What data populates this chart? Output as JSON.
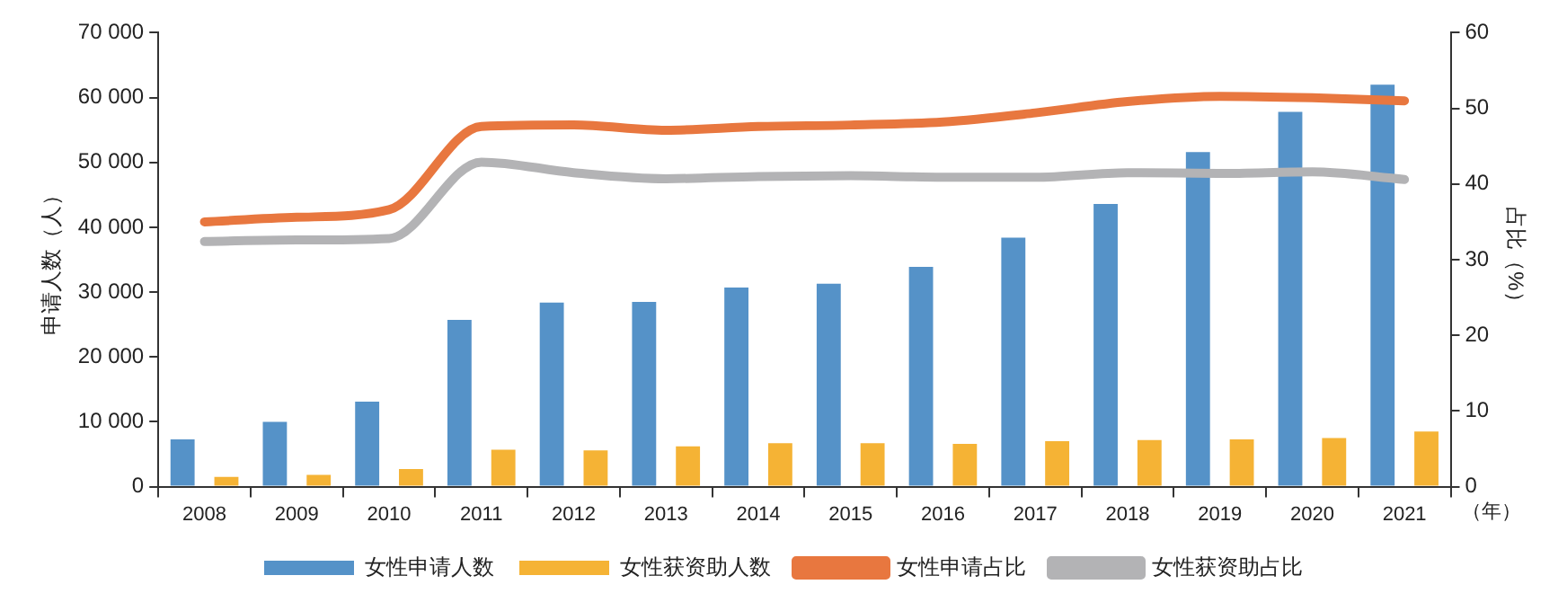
{
  "chart_data": {
    "type": "bar",
    "categories": [
      "2008",
      "2009",
      "2010",
      "2011",
      "2012",
      "2013",
      "2014",
      "2015",
      "2016",
      "2017",
      "2018",
      "2019",
      "2020",
      "2021"
    ],
    "series": [
      {
        "name": "女性申请人数",
        "color": "#5592c8",
        "values": [
          7300,
          10000,
          13100,
          25700,
          28400,
          28500,
          30700,
          31300,
          33900,
          38400,
          43600,
          51600,
          57800,
          62000
        ]
      },
      {
        "name": "女性获资助人数",
        "color": "#f5b335",
        "values": [
          1500,
          1800,
          2700,
          5700,
          5600,
          6200,
          6700,
          6700,
          6600,
          7000,
          7200,
          7300,
          7500,
          8500
        ]
      },
      {
        "name": "女性申请占比",
        "type": "line",
        "axis": "y2",
        "color": "#e8773f",
        "values": [
          35.0,
          35.6,
          36.6,
          47.6,
          47.8,
          47.1,
          47.6,
          47.8,
          48.2,
          49.4,
          50.9,
          51.6,
          51.4,
          51.0
        ]
      },
      {
        "name": "女性获资助占比",
        "type": "line",
        "axis": "y2",
        "color": "#b3b3b5",
        "values": [
          32.4,
          32.6,
          32.8,
          42.9,
          41.5,
          40.7,
          41.0,
          41.1,
          40.9,
          40.9,
          41.5,
          41.4,
          41.6,
          40.6
        ]
      }
    ],
    "ylabel": "申请人数（人）",
    "y2label": "占比（%）",
    "ylim": [
      0,
      70000
    ],
    "yticks": [
      0,
      {
        "value": 10000,
        "label": "10 000"
      },
      {
        "value": 20000,
        "label": "20 000"
      },
      {
        "value": 30000,
        "label": "30 000"
      },
      {
        "value": 40000,
        "label": "40 000"
      },
      {
        "value": 50000,
        "label": "50 000"
      },
      {
        "value": 60000,
        "label": "60 000"
      },
      {
        "value": 70000,
        "label": "70 000"
      }
    ],
    "y2lim": [
      0,
      60
    ],
    "y2ticks": [
      0,
      10,
      20,
      30,
      40,
      50,
      60
    ],
    "annotations": [
      "（年）"
    ],
    "grid": false,
    "legend": "bottom"
  }
}
